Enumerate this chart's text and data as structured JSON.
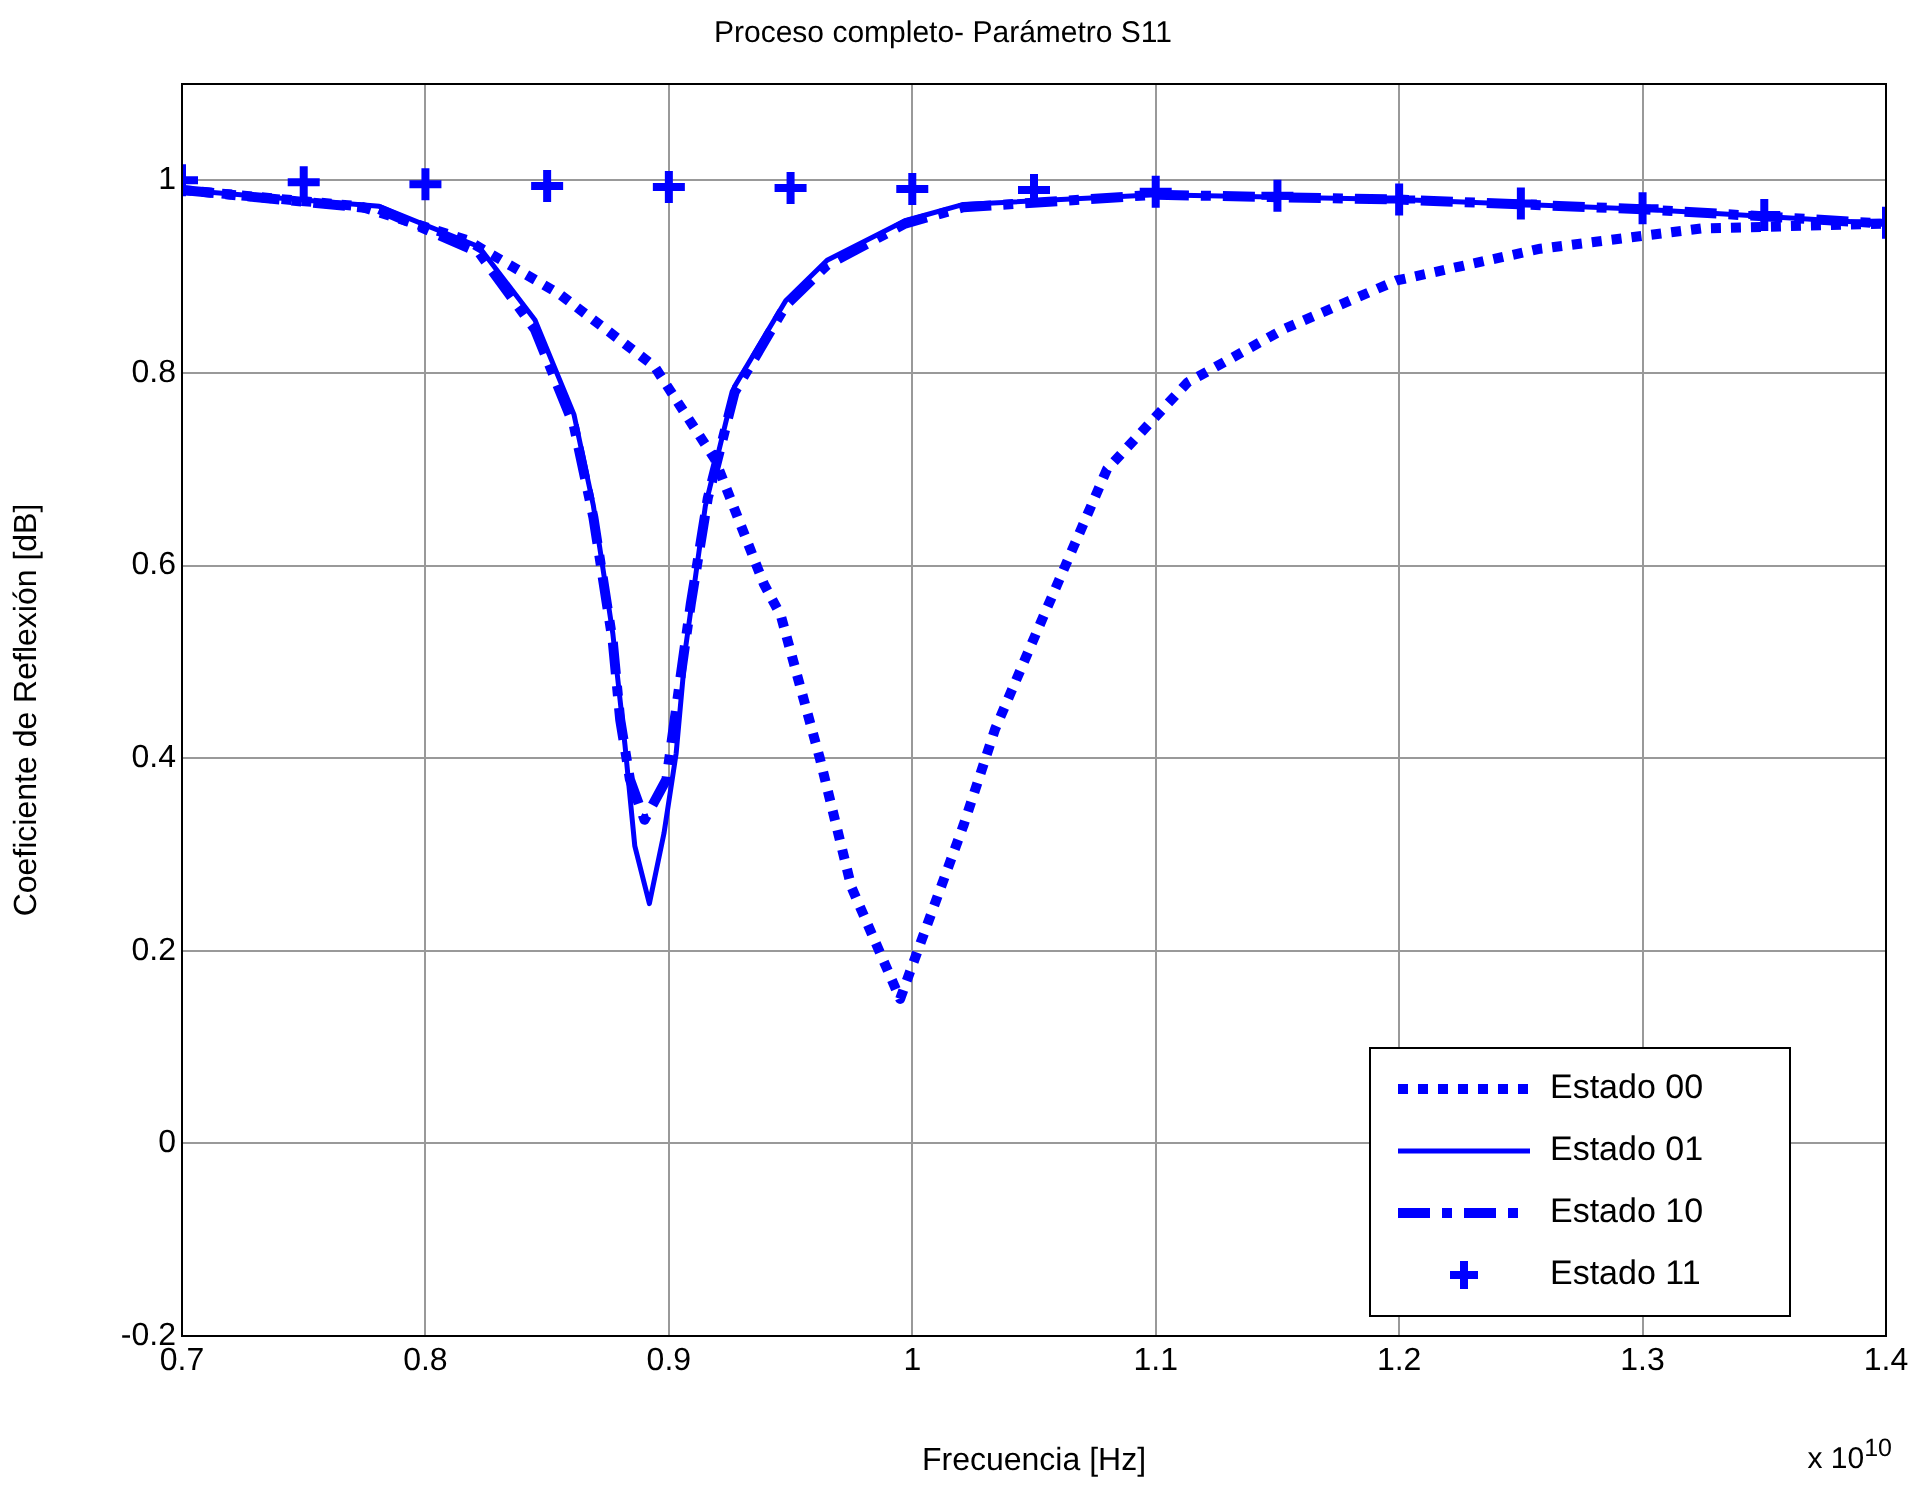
{
  "chart_data": {
    "type": "line",
    "title": "Proceso completo- Parámetro S11",
    "xlabel": "Frecuencia [Hz]",
    "ylabel": "Coeficiente de Reflexión [dB]",
    "annotations": [
      "x 10$^{10}$"
    ],
    "xlim": [
      0.7,
      1.4
    ],
    "xticks": [
      0.7,
      0.8,
      0.9,
      1,
      1.1,
      1.2,
      1.3,
      1.4
    ],
    "ylim": [
      -0.2,
      1.1
    ],
    "yticks": [
      -0.2,
      0,
      0.2,
      0.4,
      0.6,
      0.8,
      1
    ],
    "grid": true,
    "legend": "bottom right",
    "series": [
      {
        "name": "Estado 00",
        "color": "#0000ff",
        "line_style": "dotted",
        "marker": "none",
        "x": [
          0.7,
          0.773,
          0.817,
          0.855,
          0.894,
          0.919,
          0.939,
          0.946,
          0.962,
          0.975,
          0.995,
          1.021,
          1.034,
          1.054,
          1.08,
          1.113,
          1.153,
          1.199,
          1.258,
          1.324,
          1.4
        ],
        "values": [
          0.99,
          0.973,
          0.938,
          0.882,
          0.807,
          0.71,
          0.581,
          0.548,
          0.4,
          0.266,
          0.15,
          0.33,
          0.43,
          0.548,
          0.7,
          0.79,
          0.846,
          0.896,
          0.929,
          0.95,
          0.955
        ]
      },
      {
        "name": "Estado 01",
        "color": "#0000ff",
        "line_style": "solid",
        "marker": "none",
        "x": [
          0.7,
          0.781,
          0.822,
          0.845,
          0.861,
          0.869,
          0.877,
          0.882,
          0.886,
          0.892,
          0.898,
          0.903,
          0.907,
          0.915,
          0.927,
          0.948,
          0.965,
          0.997,
          1.021,
          1.1,
          1.2,
          1.3,
          1.4
        ],
        "values": [
          0.99,
          0.973,
          0.931,
          0.855,
          0.757,
          0.662,
          0.529,
          0.413,
          0.309,
          0.249,
          0.322,
          0.405,
          0.517,
          0.662,
          0.786,
          0.875,
          0.917,
          0.958,
          0.975,
          0.985,
          0.98,
          0.97,
          0.955
        ]
      },
      {
        "name": "Estado 10",
        "color": "#0000ff",
        "line_style": "dashdot",
        "marker": "none",
        "x": [
          0.7,
          0.781,
          0.822,
          0.845,
          0.861,
          0.869,
          0.877,
          0.88,
          0.884,
          0.89,
          0.899,
          0.905,
          0.909,
          0.916,
          0.927,
          0.948,
          0.965,
          0.997,
          1.021,
          1.1,
          1.2,
          1.3,
          1.4
        ],
        "values": [
          0.99,
          0.97,
          0.925,
          0.845,
          0.745,
          0.65,
          0.52,
          0.44,
          0.378,
          0.336,
          0.378,
          0.488,
          0.56,
          0.67,
          0.78,
          0.87,
          0.912,
          0.955,
          0.972,
          0.985,
          0.98,
          0.97,
          0.955
        ]
      },
      {
        "name": "Estado 11",
        "type": "scatter",
        "color": "#0000ff",
        "marker": "cross",
        "x": [
          0.7,
          0.75,
          0.8,
          0.85,
          0.9,
          0.95,
          1,
          1.05,
          1.1,
          1.15,
          1.2,
          1.25,
          1.3,
          1.35,
          1.4
        ],
        "values": [
          1,
          0.998,
          0.996,
          0.994,
          0.993,
          0.992,
          0.991,
          0.99,
          0.988,
          0.984,
          0.98,
          0.976,
          0.971,
          0.964,
          0.956
        ]
      }
    ]
  }
}
